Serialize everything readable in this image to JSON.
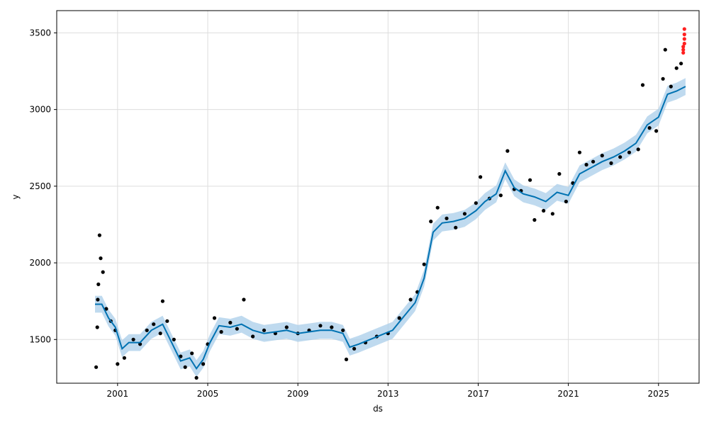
{
  "chart_data": {
    "type": "scatter",
    "title": "",
    "xlabel": "ds",
    "ylabel": "y",
    "xlim": [
      1998.3,
      2026.8
    ],
    "ylim": [
      1215,
      3645
    ],
    "xticks": [
      2001,
      2005,
      2009,
      2013,
      2017,
      2021,
      2025
    ],
    "xtick_labels": [
      "2001",
      "2005",
      "2009",
      "2013",
      "2017",
      "2021",
      "2025"
    ],
    "yticks": [
      1500,
      2000,
      2500,
      3000,
      3500
    ],
    "ytick_labels": [
      "1500",
      "2000",
      "2500",
      "3000",
      "3500"
    ],
    "grid": true,
    "colors": {
      "observed": "#000000",
      "forecast_line": "#0072B2",
      "uncertainty_band": "#a9cde9",
      "future_points": "#ff2020",
      "grid": "#dddddd"
    },
    "series": [
      {
        "type": "scatter",
        "points": [
          [
            2000.05,
            1320
          ],
          [
            2000.1,
            1580
          ],
          [
            2000.12,
            1760
          ],
          [
            2000.15,
            1860
          ],
          [
            2000.2,
            2180
          ],
          [
            2000.25,
            2030
          ],
          [
            2000.35,
            1940
          ],
          [
            2000.5,
            1700
          ],
          [
            2000.7,
            1620
          ],
          [
            2000.9,
            1560
          ],
          [
            2001.0,
            1340
          ],
          [
            2001.3,
            1380
          ],
          [
            2001.7,
            1500
          ],
          [
            2002.0,
            1470
          ],
          [
            2002.3,
            1560
          ],
          [
            2002.6,
            1600
          ],
          [
            2002.9,
            1540
          ],
          [
            2003.0,
            1750
          ],
          [
            2003.2,
            1620
          ],
          [
            2003.5,
            1500
          ],
          [
            2003.8,
            1390
          ],
          [
            2004.0,
            1320
          ],
          [
            2004.3,
            1410
          ],
          [
            2004.5,
            1250
          ],
          [
            2004.8,
            1340
          ],
          [
            2005.0,
            1470
          ],
          [
            2005.3,
            1640
          ],
          [
            2005.6,
            1550
          ],
          [
            2006.0,
            1610
          ],
          [
            2006.3,
            1570
          ],
          [
            2006.6,
            1760
          ],
          [
            2007.0,
            1520
          ],
          [
            2007.5,
            1560
          ],
          [
            2008.0,
            1540
          ],
          [
            2008.5,
            1580
          ],
          [
            2009.0,
            1540
          ],
          [
            2009.5,
            1560
          ],
          [
            2010.0,
            1590
          ],
          [
            2010.5,
            1580
          ],
          [
            2011.0,
            1560
          ],
          [
            2011.15,
            1370
          ],
          [
            2011.5,
            1440
          ],
          [
            2012.0,
            1480
          ],
          [
            2012.5,
            1520
          ],
          [
            2013.0,
            1540
          ],
          [
            2013.5,
            1640
          ],
          [
            2014.0,
            1760
          ],
          [
            2014.3,
            1810
          ],
          [
            2014.6,
            1990
          ],
          [
            2014.9,
            2270
          ],
          [
            2015.2,
            2360
          ],
          [
            2015.6,
            2290
          ],
          [
            2016.0,
            2230
          ],
          [
            2016.4,
            2320
          ],
          [
            2016.9,
            2390
          ],
          [
            2017.1,
            2560
          ],
          [
            2017.5,
            2420
          ],
          [
            2018.0,
            2440
          ],
          [
            2018.3,
            2730
          ],
          [
            2018.6,
            2480
          ],
          [
            2018.9,
            2470
          ],
          [
            2019.3,
            2540
          ],
          [
            2019.5,
            2280
          ],
          [
            2019.9,
            2340
          ],
          [
            2020.3,
            2320
          ],
          [
            2020.6,
            2580
          ],
          [
            2020.9,
            2400
          ],
          [
            2021.2,
            2520
          ],
          [
            2021.5,
            2720
          ],
          [
            2021.8,
            2640
          ],
          [
            2022.1,
            2660
          ],
          [
            2022.5,
            2700
          ],
          [
            2022.9,
            2650
          ],
          [
            2023.3,
            2690
          ],
          [
            2023.7,
            2720
          ],
          [
            2024.1,
            2740
          ],
          [
            2024.3,
            3160
          ],
          [
            2024.6,
            2880
          ],
          [
            2024.9,
            2860
          ],
          [
            2025.2,
            3200
          ],
          [
            2025.3,
            3390
          ],
          [
            2025.55,
            3150
          ],
          [
            2025.8,
            3270
          ],
          [
            2026.0,
            3300
          ]
        ]
      },
      {
        "type": "line",
        "name": "",
        "points": [
          [
            2000.0,
            1730
          ],
          [
            2000.3,
            1730
          ],
          [
            2000.6,
            1640
          ],
          [
            2000.9,
            1580
          ],
          [
            2001.2,
            1440
          ],
          [
            2001.5,
            1480
          ],
          [
            2002.0,
            1480
          ],
          [
            2002.5,
            1560
          ],
          [
            2003.0,
            1600
          ],
          [
            2003.4,
            1480
          ],
          [
            2003.8,
            1360
          ],
          [
            2004.2,
            1380
          ],
          [
            2004.5,
            1310
          ],
          [
            2004.8,
            1370
          ],
          [
            2005.1,
            1480
          ],
          [
            2005.5,
            1590
          ],
          [
            2006.0,
            1580
          ],
          [
            2006.5,
            1600
          ],
          [
            2007.0,
            1560
          ],
          [
            2007.5,
            1540
          ],
          [
            2008.0,
            1550
          ],
          [
            2008.5,
            1560
          ],
          [
            2009.0,
            1540
          ],
          [
            2009.5,
            1550
          ],
          [
            2010.0,
            1560
          ],
          [
            2010.5,
            1560
          ],
          [
            2011.0,
            1540
          ],
          [
            2011.3,
            1450
          ],
          [
            2011.7,
            1470
          ],
          [
            2012.2,
            1500
          ],
          [
            2012.7,
            1530
          ],
          [
            2013.2,
            1560
          ],
          [
            2013.7,
            1650
          ],
          [
            2014.2,
            1740
          ],
          [
            2014.6,
            1900
          ],
          [
            2015.0,
            2200
          ],
          [
            2015.4,
            2260
          ],
          [
            2015.9,
            2270
          ],
          [
            2016.4,
            2290
          ],
          [
            2016.9,
            2340
          ],
          [
            2017.3,
            2400
          ],
          [
            2017.8,
            2450
          ],
          [
            2018.2,
            2600
          ],
          [
            2018.6,
            2490
          ],
          [
            2019.0,
            2450
          ],
          [
            2019.5,
            2430
          ],
          [
            2020.0,
            2400
          ],
          [
            2020.5,
            2460
          ],
          [
            2021.0,
            2440
          ],
          [
            2021.5,
            2580
          ],
          [
            2022.0,
            2620
          ],
          [
            2022.5,
            2660
          ],
          [
            2023.0,
            2690
          ],
          [
            2023.5,
            2730
          ],
          [
            2024.0,
            2780
          ],
          [
            2024.5,
            2900
          ],
          [
            2025.0,
            2950
          ],
          [
            2025.4,
            3100
          ],
          [
            2025.8,
            3120
          ],
          [
            2026.2,
            3150
          ]
        ]
      },
      {
        "type": "scatter",
        "name": "",
        "points": [
          [
            2026.1,
            3370
          ],
          [
            2026.1,
            3390
          ],
          [
            2026.1,
            3410
          ],
          [
            2026.15,
            3430
          ],
          [
            2026.15,
            3460
          ],
          [
            2026.15,
            3490
          ],
          [
            2026.15,
            3525
          ]
        ]
      }
    ],
    "uncertainty_halfwidth": 55
  }
}
